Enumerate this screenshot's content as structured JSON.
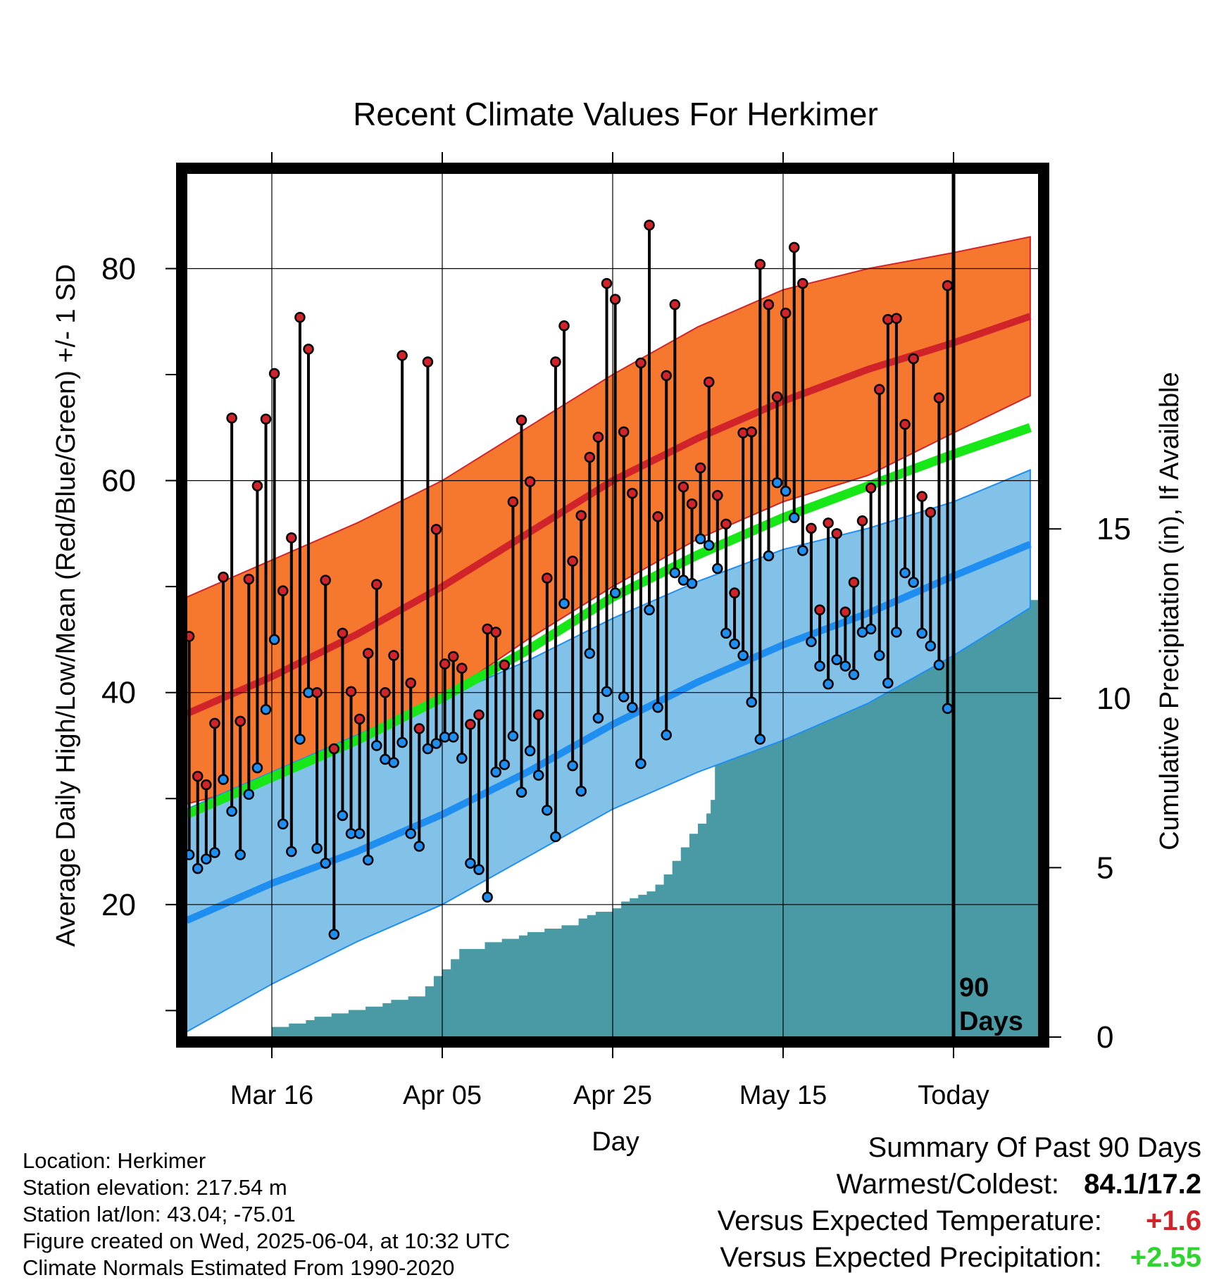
{
  "chart_data": {
    "type": "line",
    "title": "Recent Climate Values For Herkimer",
    "xlabel": "Day",
    "ylabel": "Average Daily High/Low/Mean (Red/Blue/Green) +/- 1 SD",
    "y2label": "Cumulative Precipitation (in), If Available",
    "ylim": [
      7.5,
      89
    ],
    "y2lim": [
      0,
      25.5
    ],
    "xlim": [
      0,
      100
    ],
    "x_ticks": [
      {
        "x": 10,
        "label": "Mar 16"
      },
      {
        "x": 30,
        "label": "Apr 05"
      },
      {
        "x": 50,
        "label": "Apr 25"
      },
      {
        "x": 70,
        "label": "May 15"
      },
      {
        "x": 90,
        "label": "Today"
      }
    ],
    "y_ticks": [
      20,
      40,
      60,
      80
    ],
    "y_minor_ticks": [
      10,
      30,
      50,
      70
    ],
    "y2_ticks": [
      0,
      5,
      10,
      15
    ],
    "today_x": 90,
    "today_label": [
      "90",
      "Days"
    ],
    "colors": {
      "high_band": "#f5782e",
      "high_line": "#d0242a",
      "low_band": "#82c1e8",
      "low_line": "#1e8ef0",
      "mean_line": "#17e617",
      "precip": "#4a9aa5",
      "high_point": "#d0242a",
      "low_point": "#1e8ef0"
    },
    "normals": {
      "x": [
        0,
        10,
        20,
        30,
        40,
        50,
        60,
        70,
        80,
        90,
        99
      ],
      "high_mean": [
        38,
        41.5,
        45.5,
        50,
        55,
        60,
        64,
        67.5,
        70.5,
        73,
        75.5
      ],
      "high_sd_upper": [
        49,
        52.5,
        56,
        60,
        65,
        70,
        74.5,
        78,
        80,
        81.5,
        83
      ],
      "high_sd_lower": [
        29.5,
        31.5,
        34.5,
        39.5,
        45,
        50,
        54.5,
        58,
        60.5,
        64.5,
        68
      ],
      "low_mean": [
        18.5,
        22,
        25,
        28.5,
        32.5,
        37,
        41,
        44.5,
        47.5,
        51,
        54
      ],
      "low_sd_upper": [
        29,
        32.5,
        36,
        39.5,
        43,
        47,
        50.5,
        53.5,
        55.5,
        58,
        61
      ],
      "low_sd_lower": [
        8,
        12.5,
        16.5,
        20,
        24.5,
        29,
        32.5,
        35.5,
        39,
        43.5,
        48
      ],
      "mean": [
        28.5,
        32,
        35.5,
        39.5,
        44,
        49,
        53,
        56.5,
        59.5,
        62.5,
        65
      ]
    },
    "daily": {
      "x": [
        0,
        1,
        2,
        3,
        4,
        5,
        6,
        7,
        8,
        9,
        10,
        11,
        12,
        13,
        14,
        15,
        16,
        17,
        18,
        19,
        20,
        21,
        22,
        23,
        24,
        25,
        26,
        27,
        28,
        29,
        30,
        31,
        32,
        33,
        34,
        35,
        36,
        37,
        38,
        39,
        40,
        41,
        42,
        43,
        44,
        45,
        46,
        47,
        48,
        49,
        50,
        51,
        52,
        53,
        54,
        55,
        56,
        57,
        58,
        59,
        60,
        61,
        62,
        63,
        64,
        65,
        66,
        67,
        68,
        69,
        70,
        71,
        72,
        73,
        74,
        75,
        76,
        77,
        78,
        79,
        80,
        81,
        82,
        83,
        84,
        85,
        86,
        87,
        88,
        89
      ],
      "high": [
        45.3,
        32.1,
        31.3,
        37.1,
        50.9,
        65.9,
        37.3,
        50.7,
        59.5,
        65.8,
        70.1,
        49.6,
        54.6,
        75.4,
        72.4,
        40.0,
        50.6,
        34.7,
        45.6,
        40.1,
        37.5,
        43.7,
        50.2,
        40.0,
        43.5,
        71.8,
        40.9,
        36.6,
        71.2,
        55.4,
        42.7,
        43.4,
        42.3,
        37.0,
        37.9,
        46.0,
        45.7,
        42.6,
        58.0,
        65.7,
        59.9,
        37.9,
        50.8,
        71.2,
        74.6,
        52.4,
        56.7,
        62.2,
        64.1,
        78.6,
        77.1,
        64.6,
        58.8,
        71.1,
        84.1,
        56.6,
        69.9,
        76.6,
        59.4,
        57.8,
        61.2,
        69.3,
        58.6,
        55.9,
        49.4,
        64.5,
        64.6,
        80.4,
        76.6,
        67.9,
        75.8,
        82.0,
        78.6,
        55.5,
        47.8,
        56.0,
        55.0,
        47.6,
        50.4,
        56.2,
        59.3,
        68.6,
        75.2,
        75.3,
        65.3,
        71.5,
        58.5,
        57.0,
        67.8,
        78.4
      ],
      "low": [
        24.7,
        23.4,
        24.3,
        24.9,
        31.8,
        28.8,
        24.7,
        30.4,
        32.9,
        38.4,
        45.0,
        27.6,
        25.0,
        35.6,
        40.0,
        25.3,
        23.9,
        17.2,
        28.4,
        26.7,
        26.7,
        24.2,
        35.0,
        33.7,
        33.4,
        35.3,
        26.7,
        25.5,
        34.7,
        35.2,
        35.8,
        35.8,
        33.8,
        23.9,
        23.3,
        20.7,
        32.5,
        33.2,
        35.9,
        30.6,
        34.5,
        32.2,
        28.9,
        26.4,
        48.4,
        33.1,
        30.7,
        43.7,
        37.6,
        40.1,
        49.4,
        39.6,
        38.6,
        33.3,
        47.8,
        38.6,
        36.0,
        51.3,
        50.6,
        50.3,
        54.5,
        53.9,
        51.7,
        45.6,
        44.6,
        43.5,
        39.1,
        35.6,
        52.9,
        59.8,
        59.0,
        56.5,
        53.4,
        44.8,
        42.5,
        40.8,
        43.1,
        42.5,
        41.7,
        45.7,
        46.0,
        43.5,
        40.9,
        45.7,
        51.3,
        50.4,
        45.6,
        44.4,
        42.6,
        38.5
      ]
    },
    "precip": {
      "x": [
        10,
        12,
        14,
        15,
        17,
        19,
        21,
        23,
        24,
        26,
        28,
        29,
        30,
        31,
        32,
        35,
        37,
        39,
        40,
        42,
        44,
        46,
        47,
        48,
        50,
        51,
        52,
        53,
        54,
        55,
        56,
        57,
        58,
        59,
        60,
        61,
        61.5,
        62,
        64,
        65,
        66,
        68,
        70,
        71,
        72,
        73,
        74,
        76,
        78,
        79,
        80,
        81,
        82,
        84,
        86,
        87,
        88,
        89,
        90,
        99
      ],
      "y": [
        0.3,
        0.4,
        0.5,
        0.6,
        0.7,
        0.8,
        0.9,
        1.0,
        1.1,
        1.2,
        1.5,
        1.8,
        2.0,
        2.3,
        2.6,
        2.8,
        2.9,
        3.0,
        3.1,
        3.2,
        3.3,
        3.5,
        3.6,
        3.7,
        3.8,
        4.0,
        4.1,
        4.2,
        4.3,
        4.5,
        4.8,
        5.2,
        5.6,
        6.0,
        6.3,
        6.6,
        7.0,
        8.5,
        9.0,
        10.0,
        10.2,
        10.3,
        10.4,
        10.5,
        10.7,
        10.9,
        11.0,
        11.2,
        11.4,
        11.7,
        11.9,
        12.1,
        12.2,
        12.3,
        12.4,
        12.5,
        12.6,
        12.7,
        12.8,
        12.9
      ]
    }
  },
  "footer": {
    "location": "Location: Herkimer",
    "elevation": "Station elevation: 217.54 m",
    "latlon": "Station lat/lon: 43.04; -75.01",
    "created": "Figure created on Wed, 2025-06-04, at 10:32 UTC",
    "normals": "Climate Normals Estimated From 1990-2020"
  },
  "summary": {
    "heading": "Summary Of Past 90 Days",
    "warmest_coldest_label": "Warmest/Coldest:",
    "warmest_coldest_value": "84.1/17.2",
    "temp_label": "Versus Expected Temperature:",
    "temp_value": "+1.6",
    "temp_color": "#d0242a",
    "precip_label": "Versus Expected Precipitation:",
    "precip_value": "+2.55",
    "precip_color": "#2fd42f"
  }
}
